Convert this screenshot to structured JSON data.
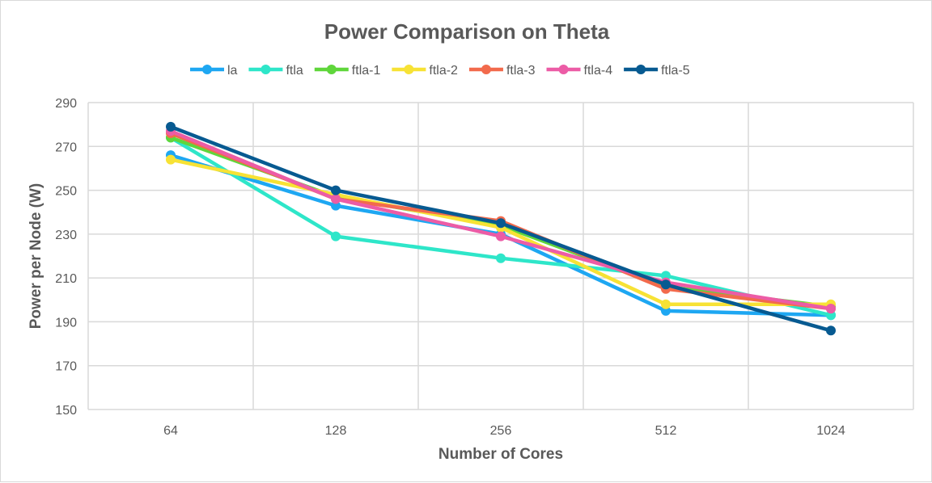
{
  "chart_data": {
    "type": "line",
    "title": "Power Comparison on Theta",
    "xlabel": "Number of Cores",
    "ylabel": "Power per Node  (W)",
    "categories": [
      "64",
      "128",
      "256",
      "512",
      "1024"
    ],
    "ylim": [
      150,
      290
    ],
    "yticks": [
      150,
      170,
      190,
      210,
      230,
      250,
      270,
      290
    ],
    "grid": true,
    "legend": "top",
    "series": [
      {
        "name": "la",
        "color": "#1ea7f2",
        "values": [
          266,
          243,
          230,
          195,
          193
        ]
      },
      {
        "name": "ftla",
        "color": "#2ee6c9",
        "values": [
          274,
          229,
          219,
          211,
          193
        ]
      },
      {
        "name": "ftla-1",
        "color": "#5fd63b",
        "values": [
          274,
          247,
          234,
          206,
          197
        ]
      },
      {
        "name": "ftla-2",
        "color": "#f7e235",
        "values": [
          264,
          248,
          233,
          198,
          198
        ]
      },
      {
        "name": "ftla-3",
        "color": "#f26a4c",
        "values": [
          276,
          246,
          236,
          205,
          196
        ]
      },
      {
        "name": "ftla-4",
        "color": "#ec5ca6",
        "values": [
          277,
          246,
          229,
          208,
          196
        ]
      },
      {
        "name": "ftla-5",
        "color": "#075a91",
        "values": [
          279,
          250,
          235,
          207,
          186
        ]
      }
    ]
  }
}
